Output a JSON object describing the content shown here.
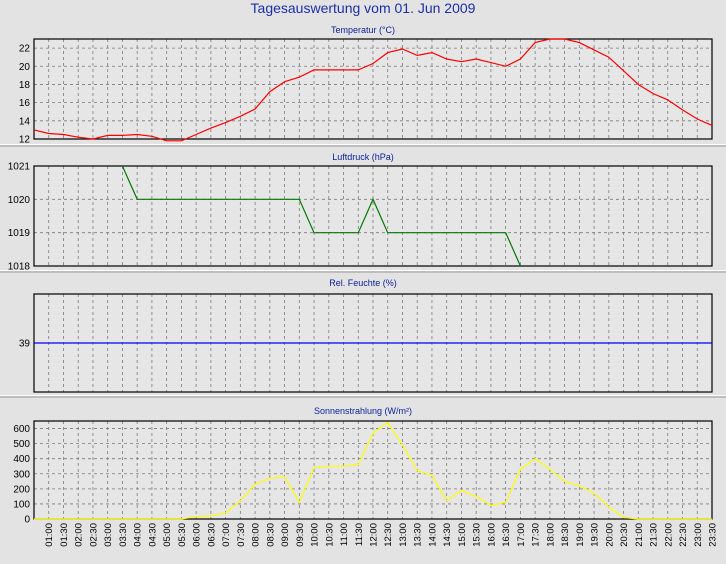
{
  "title": "Tagesauswertung vom 01. Jun 2009",
  "x_labels": [
    "01:00",
    "01:30",
    "02:00",
    "02:30",
    "03:00",
    "03:30",
    "04:00",
    "04:30",
    "05:00",
    "05:30",
    "06:00",
    "06:30",
    "07:00",
    "07:30",
    "08:00",
    "08:30",
    "09:00",
    "09:30",
    "10:00",
    "10:30",
    "11:00",
    "11:30",
    "12:00",
    "12:30",
    "13:00",
    "13:30",
    "14:00",
    "14:30",
    "15:00",
    "15:30",
    "16:00",
    "16:30",
    "17:00",
    "17:30",
    "18:00",
    "18:30",
    "19:00",
    "19:30",
    "20:00",
    "20:30",
    "21:00",
    "21:30",
    "22:00",
    "22:30",
    "23:00",
    "23:30"
  ],
  "colors": {
    "temperature": "#ff0000",
    "pressure": "#007a00",
    "humidity": "#0000ff",
    "solar": "#ffff00",
    "plot_bg": "#e6e6e6",
    "title": "#1c2fa6"
  },
  "chart_data": [
    {
      "type": "line",
      "title": "Temperatur (°C)",
      "ylim": [
        12,
        23
      ],
      "yticks": [
        "12",
        "14",
        "16",
        "18",
        "20",
        "22"
      ],
      "x": [
        0.5,
        1,
        1.5,
        2,
        2.5,
        3,
        3.5,
        4,
        4.5,
        5,
        5.5,
        6,
        6.5,
        7,
        7.5,
        8,
        8.5,
        9,
        9.5,
        10,
        10.5,
        11,
        11.5,
        12,
        12.5,
        13,
        13.5,
        14,
        14.5,
        15,
        15.5,
        16,
        16.5,
        17,
        17.5,
        18,
        18.5,
        19,
        19.5,
        20,
        20.5,
        21,
        21.5,
        22,
        22.5,
        23,
        23.5
      ],
      "series": [
        {
          "values": [
            13,
            12.6,
            12.5,
            12.2,
            12,
            12.4,
            12.4,
            12.5,
            12.3,
            11.8,
            11.8,
            12.5,
            13.2,
            13.8,
            14.5,
            15.3,
            17.2,
            18.3,
            18.8,
            19.6,
            19.6,
            19.6,
            19.6,
            20.3,
            21.5,
            21.9,
            21.2,
            21.5,
            20.8,
            20.5,
            20.8,
            20.4,
            20,
            20.8,
            22.6,
            23,
            23,
            22.6,
            21.8,
            21,
            19.5,
            18,
            17,
            16.3,
            15.2,
            14.2,
            13.5
          ]
        }
      ]
    },
    {
      "type": "line",
      "title": "Luftdruck (hPa)",
      "ylim": [
        1018,
        1021
      ],
      "yticks": [
        "1018",
        "1019",
        "1020",
        "1021"
      ],
      "x": [
        3.5,
        4,
        9.5,
        10,
        11.5,
        12,
        12.5,
        16.5,
        17
      ],
      "series": [
        {
          "values": [
            1021,
            1020,
            1020,
            1019,
            1019,
            1020,
            1019,
            1019,
            1018
          ]
        }
      ]
    },
    {
      "type": "line",
      "title": "Rel. Feuchte (%)",
      "ylim": [
        38,
        40
      ],
      "yticks": [
        "39"
      ],
      "x": [
        0.5,
        23.5
      ],
      "series": [
        {
          "values": [
            39,
            39
          ]
        }
      ]
    },
    {
      "type": "line",
      "title": "Sonnenstrahlung (W/m²)",
      "ylim": [
        0,
        650
      ],
      "yticks": [
        "0",
        "100",
        "200",
        "300",
        "400",
        "500",
        "600"
      ],
      "x": [
        0.5,
        1,
        1.5,
        2,
        2.5,
        3,
        3.5,
        4,
        4.5,
        5,
        5.5,
        6,
        6.5,
        7,
        7.5,
        8,
        8.5,
        9,
        9.5,
        10,
        10.5,
        11,
        11.5,
        12,
        12.5,
        13,
        13.5,
        14,
        14.5,
        15,
        15.5,
        16,
        16.5,
        17,
        17.5,
        18,
        18.5,
        19,
        19.5,
        20,
        20.5,
        21,
        21.5,
        22,
        22.5,
        23,
        23.5
      ],
      "series": [
        {
          "values": [
            0,
            0,
            0,
            0,
            0,
            0,
            0,
            0,
            0,
            0,
            0,
            15,
            20,
            40,
            120,
            230,
            270,
            280,
            110,
            340,
            350,
            350,
            360,
            570,
            640,
            490,
            320,
            290,
            120,
            190,
            150,
            90,
            110,
            330,
            400,
            330,
            250,
            220,
            170,
            80,
            10,
            0,
            0,
            0,
            0,
            0,
            0
          ]
        }
      ]
    }
  ]
}
